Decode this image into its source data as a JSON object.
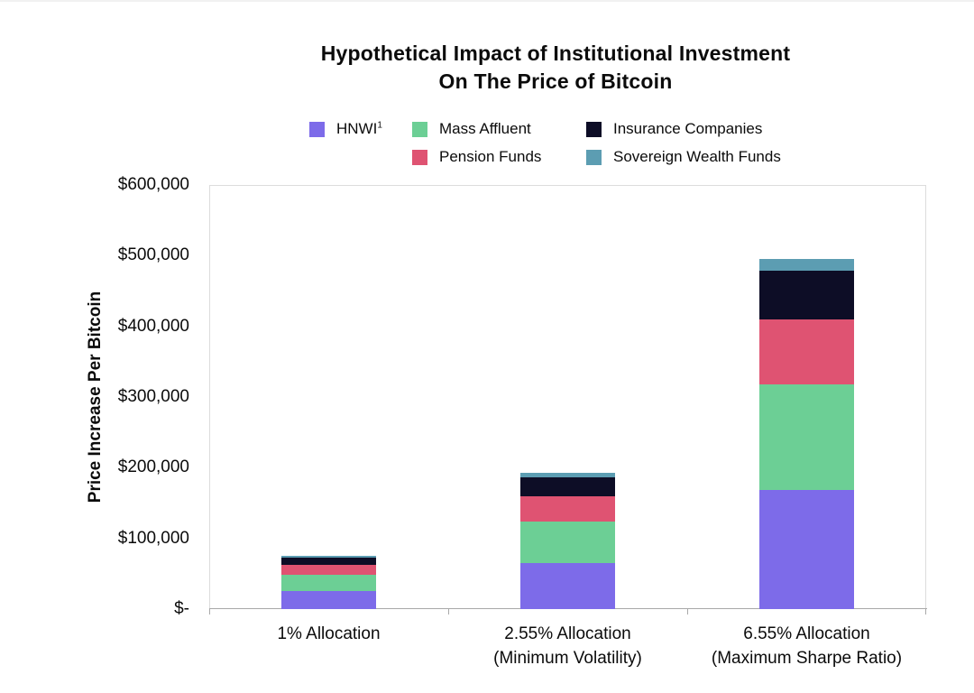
{
  "chart_data": {
    "type": "bar",
    "subtype": "stacked-vertical",
    "title_line1": "Hypothetical Impact of Institutional Investment",
    "title_line2": "On The Price of Bitcoin",
    "ylabel": "Price Increase Per Bitcoin",
    "ylim": [
      0,
      600000
    ],
    "y_tick_labels": [
      "$-",
      "$100,000",
      "$200,000",
      "$300,000",
      "$400,000",
      "$500,000",
      "$600,000"
    ],
    "grid": false,
    "legend_position": "top-center",
    "categories": [
      {
        "label_line1": "1% Allocation",
        "label_line2": ""
      },
      {
        "label_line1": "2.55% Allocation",
        "label_line2": "(Minimum Volatility)"
      },
      {
        "label_line1": "6.55% Allocation",
        "label_line2": "(Maximum Sharpe Ratio)"
      }
    ],
    "series": [
      {
        "name": "HNWI",
        "footnote_marker": "1",
        "color": "#7D6BE9",
        "values": [
          25700,
          65500,
          168300
        ]
      },
      {
        "name": "Mass Affluent",
        "footnote_marker": "",
        "color": "#6CCF95",
        "values": [
          22800,
          58100,
          149300
        ]
      },
      {
        "name": "Pension Funds",
        "footnote_marker": "",
        "color": "#DF5372",
        "values": [
          14000,
          35700,
          91700
        ]
      },
      {
        "name": "Insurance Companies",
        "footnote_marker": "",
        "color": "#0D0D26",
        "values": [
          10600,
          27000,
          69400
        ]
      },
      {
        "name": "Sovereign Wealth Funds",
        "footnote_marker": "",
        "color": "#5C9DB2",
        "values": [
          2600,
          6600,
          17000
        ]
      }
    ],
    "stack_totals": [
      75700,
      192900,
      495700
    ],
    "legend_columns": [
      [
        0
      ],
      [
        1,
        2
      ],
      [
        3,
        4
      ]
    ],
    "axis_color": "#a9a9a9",
    "plot_border_color": "#dcdcdc"
  }
}
